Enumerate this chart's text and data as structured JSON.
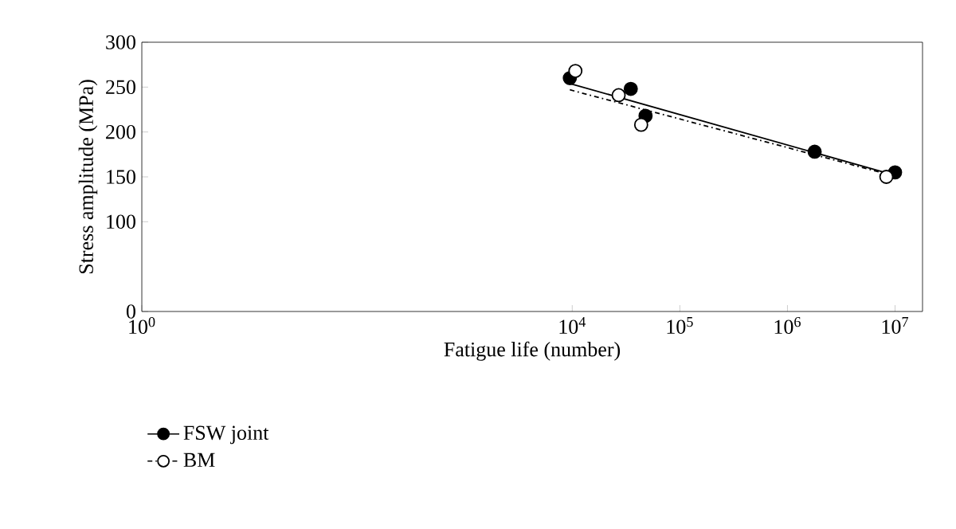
{
  "chart_data": {
    "type": "scatter",
    "xlabel": "Fatigue life (number)",
    "ylabel": "Stress amplitude (MPa)",
    "log": "x",
    "xlim": [
      1,
      18000000
    ],
    "ylim": [
      0,
      300
    ],
    "xticks": [
      {
        "value": 1,
        "label": "10$^{0}$"
      },
      {
        "value": 10000,
        "label": "10$^{4}$"
      },
      {
        "value": 100000,
        "label": "10$^{5}$"
      },
      {
        "value": 1000000,
        "label": "10$^{6}$"
      },
      {
        "value": 10000000,
        "label": "10$^{7}$"
      }
    ],
    "yticks": [
      0,
      100,
      150,
      200,
      250,
      300
    ],
    "grid": false,
    "legend": "bottom left",
    "marker": "circle",
    "series": [
      {
        "name": "FSW joint",
        "color": "#000000",
        "line_style": "solid",
        "x": [
          9500,
          35000,
          48000,
          1790000,
          10000000
        ],
        "values": [
          260,
          248,
          218,
          178,
          155
        ]
      },
      {
        "name": "BM",
        "color": "#ffffff",
        "line_style": "dashdot",
        "x": [
          10700,
          27000,
          43700,
          8300000
        ],
        "values": [
          268,
          241,
          208,
          150
        ]
      },
      {
        "type": "line",
        "marker": "none",
        "color": "#000000",
        "line_style": "solid",
        "x": [
          9500,
          8500000
        ],
        "values": [
          254,
          154
        ]
      },
      {
        "type": "line",
        "marker": "none",
        "color": "#000000",
        "line_style": "dashdot",
        "x": [
          9500,
          8500000
        ],
        "values": [
          247,
          153
        ]
      }
    ]
  }
}
